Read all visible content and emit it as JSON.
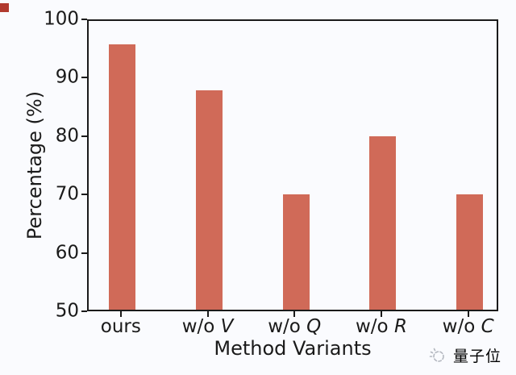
{
  "chart_data": {
    "type": "bar",
    "categories": [
      "ours",
      "w/o V",
      "w/o Q",
      "w/o R",
      "w/o C"
    ],
    "categories_rich": [
      {
        "prefix": "ours",
        "var": ""
      },
      {
        "prefix": "w/o",
        "var": "V"
      },
      {
        "prefix": "w/o",
        "var": "Q"
      },
      {
        "prefix": "w/o",
        "var": "R"
      },
      {
        "prefix": "w/o",
        "var": "C"
      }
    ],
    "values": [
      96,
      88,
      70,
      80,
      70
    ],
    "title": "",
    "xlabel": "Method Variants",
    "ylabel": "Percentage (%)",
    "ylim": [
      50,
      100
    ],
    "yticks": [
      50,
      60,
      70,
      80,
      90,
      100
    ],
    "grid": false,
    "legend": null,
    "bar_color": "#d06a58",
    "axis_color": "#1a1a1a"
  },
  "watermark": {
    "text": "量子位",
    "icon": "qbitai-sun-logo",
    "color": "#b3b7bf"
  }
}
